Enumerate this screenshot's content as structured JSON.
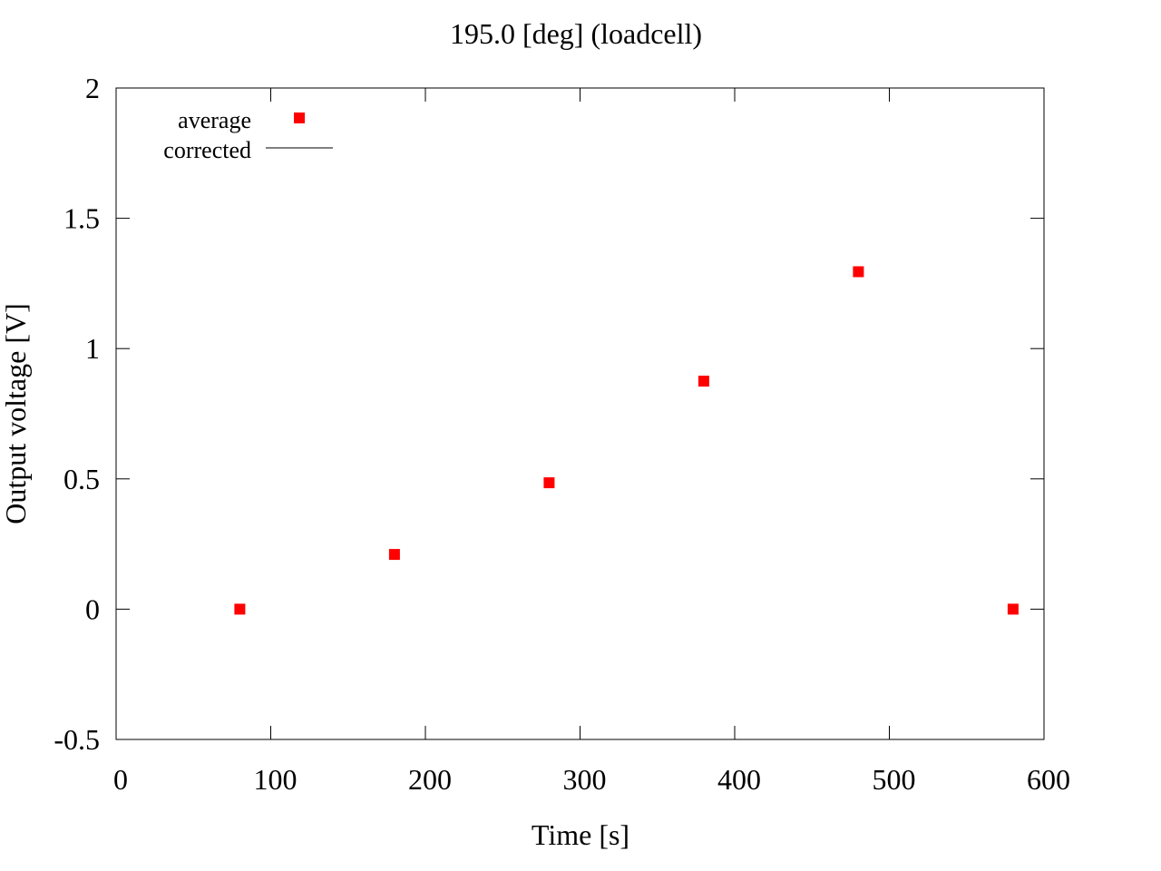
{
  "chart_data": {
    "type": "scatter",
    "title": "195.0 [deg] (loadcell)",
    "xlabel": "Time [s]",
    "ylabel": "Output voltage [V]",
    "xlim": [
      0,
      600
    ],
    "ylim": [
      -0.5,
      2
    ],
    "xticks": [
      0,
      100,
      200,
      300,
      400,
      500,
      600
    ],
    "yticks": [
      -0.5,
      0,
      0.5,
      1,
      1.5,
      2
    ],
    "xtick_labels": [
      "0",
      "100",
      "200",
      "300",
      "400",
      "500",
      "600"
    ],
    "ytick_labels": [
      "-0.5",
      "0",
      "0.5",
      "1",
      "1.5",
      "2"
    ],
    "grid": false,
    "legend_position": "top-left",
    "series": [
      {
        "name": "average",
        "marker": "square",
        "color": "#ff0000",
        "x": [
          80,
          180,
          280,
          380,
          480,
          580
        ],
        "y": [
          0.0,
          0.21,
          0.485,
          0.875,
          1.295,
          0.0
        ]
      },
      {
        "name": "corrected",
        "marker": "line",
        "color": "#000000",
        "x": [],
        "y": []
      }
    ]
  }
}
